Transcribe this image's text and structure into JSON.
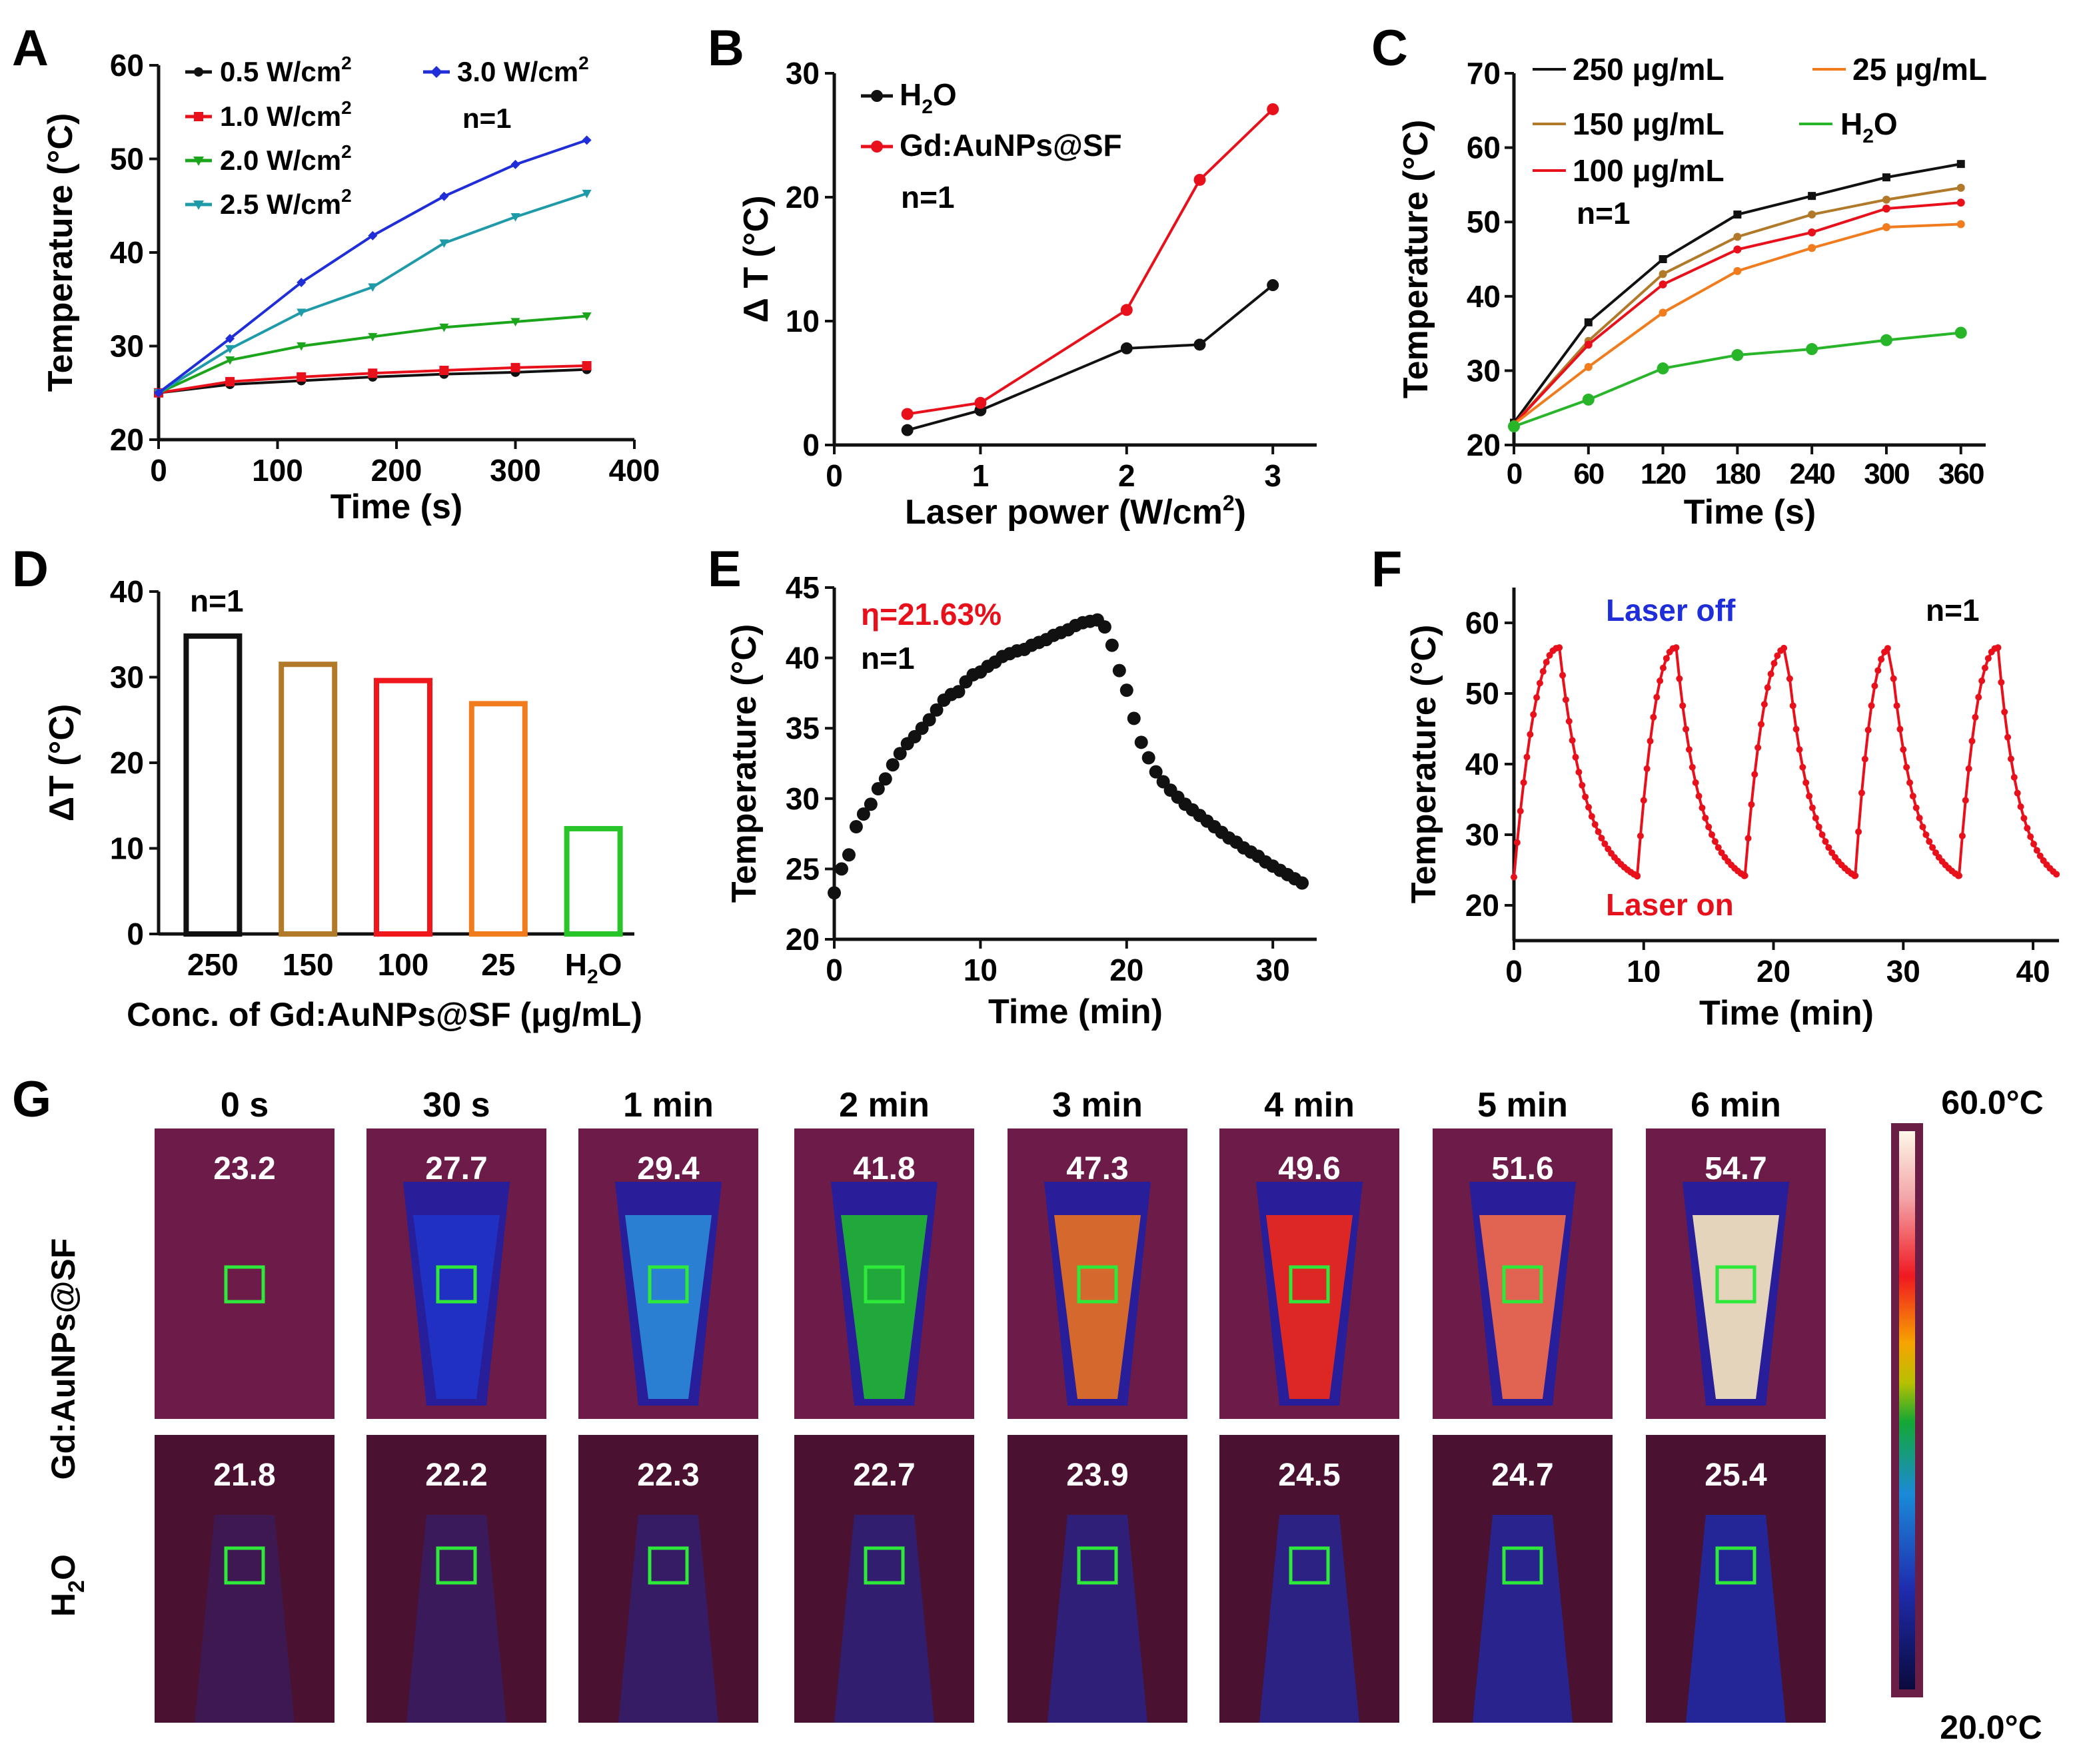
{
  "figure_note": "Photothermal performance of Gd:AuNPs@SF",
  "chart_data": [
    {
      "id": "A",
      "type": "line",
      "panel_label": "A",
      "xlabel": "Time (s)",
      "ylabel": "Temperature (°C)",
      "xlim": [
        0,
        400
      ],
      "ylim": [
        20,
        60
      ],
      "xticks": [
        0,
        100,
        200,
        300,
        400
      ],
      "yticks": [
        20,
        30,
        40,
        50,
        60
      ],
      "annotation": "n=1",
      "x": [
        0,
        60,
        120,
        180,
        240,
        300,
        360
      ],
      "series": [
        {
          "name": "0.5 W/cm",
          "sup": "2",
          "color": "#111111",
          "marker": "circle",
          "values": [
            25.0,
            25.9,
            26.3,
            26.7,
            27.0,
            27.2,
            27.5
          ]
        },
        {
          "name": "1.0 W/cm",
          "sup": "2",
          "color": "#e8111b",
          "marker": "square",
          "values": [
            25.0,
            26.2,
            26.7,
            27.1,
            27.4,
            27.7,
            27.9
          ]
        },
        {
          "name": "2.0 W/cm",
          "sup": "2",
          "color": "#1aa51a",
          "marker": "tri-down",
          "values": [
            25.0,
            28.5,
            30.0,
            31.0,
            32.0,
            32.6,
            33.2
          ]
        },
        {
          "name": "2.5 W/cm",
          "sup": "2",
          "color": "#1f9aa8",
          "marker": "tri-down",
          "values": [
            25.0,
            29.7,
            33.6,
            36.3,
            41.0,
            43.8,
            46.3
          ]
        },
        {
          "name": "3.0 W/cm",
          "sup": "2",
          "color": "#1f2ed8",
          "marker": "diamond",
          "values": [
            25.0,
            30.8,
            36.8,
            41.8,
            46.0,
            49.4,
            52.0
          ]
        }
      ]
    },
    {
      "id": "B",
      "type": "line",
      "panel_label": "B",
      "xlabel": "Laser power (W/cm",
      "xlabel_sup": "2",
      "xlabel_end": ")",
      "ylabel": "Δ T (°C)",
      "xlim": [
        0,
        3.3
      ],
      "ylim": [
        0,
        30
      ],
      "xticks": [
        0,
        1,
        2,
        3
      ],
      "yticks": [
        0,
        10,
        20,
        30
      ],
      "annotation": "n=1",
      "series": [
        {
          "name": "H2O",
          "label_main": "H",
          "label_sub": "2",
          "label_end": "O",
          "color": "#111111",
          "x": [
            0.5,
            1,
            2,
            2.5,
            3
          ],
          "values": [
            1.2,
            2.8,
            7.8,
            8.1,
            12.9
          ]
        },
        {
          "name": "Gd:AuNPs@SF",
          "color": "#e8111b",
          "x": [
            0.5,
            1,
            2,
            2.5,
            3
          ],
          "values": [
            2.5,
            3.4,
            10.9,
            21.4,
            27.1
          ]
        }
      ]
    },
    {
      "id": "C",
      "type": "line",
      "panel_label": "C",
      "xlabel": "Time (s)",
      "ylabel": "Temperature (°C)",
      "xlim": [
        0,
        380
      ],
      "ylim": [
        20,
        70
      ],
      "xticks": [
        0,
        60,
        120,
        180,
        240,
        300,
        360
      ],
      "yticks": [
        20,
        30,
        40,
        50,
        60,
        70
      ],
      "annotation": "n=1",
      "x": [
        0,
        60,
        120,
        180,
        240,
        300,
        360
      ],
      "series": [
        {
          "name": "250 μg/mL",
          "color": "#111111",
          "values": [
            23.0,
            36.5,
            45.0,
            51.0,
            53.5,
            56.0,
            57.8
          ]
        },
        {
          "name": "150 μg/mL",
          "color": "#b07a2a",
          "values": [
            22.8,
            34.0,
            43.0,
            48.0,
            51.0,
            53.0,
            54.6
          ]
        },
        {
          "name": "100 μg/mL",
          "color": "#e8111b",
          "values": [
            22.8,
            33.5,
            41.6,
            46.3,
            48.6,
            51.8,
            52.6
          ]
        },
        {
          "name": "25 μg/mL",
          "color": "#f07c1e",
          "values": [
            22.8,
            30.5,
            37.8,
            43.4,
            46.5,
            49.3,
            49.7
          ]
        },
        {
          "name": "H2O",
          "label_main": "H",
          "label_sub": "2",
          "label_end": "O",
          "color": "#28b52a",
          "values": [
            22.5,
            26.1,
            30.3,
            32.1,
            32.9,
            34.1,
            35.1
          ]
        }
      ]
    },
    {
      "id": "D",
      "type": "bar",
      "panel_label": "D",
      "xlabel": "Conc. of Gd:AuNPs@SF (μg/mL)",
      "ylabel": "ΔT (°C)",
      "ylim": [
        0,
        40
      ],
      "yticks": [
        0,
        10,
        20,
        30,
        40
      ],
      "annotation": "n=1",
      "categories": [
        "250",
        "150",
        "100",
        "25",
        "H2O"
      ],
      "values": [
        34.8,
        31.5,
        29.6,
        26.9,
        12.3
      ],
      "colors": [
        "#111111",
        "#b07a2a",
        "#f0171c",
        "#f07c1e",
        "#28c52a"
      ]
    },
    {
      "id": "E",
      "type": "scatter",
      "panel_label": "E",
      "xlabel": "Time (min)",
      "ylabel": "Temperature (°C)",
      "xlim": [
        0,
        33
      ],
      "ylim": [
        20,
        45
      ],
      "xticks": [
        0,
        10,
        20,
        30
      ],
      "yticks": [
        20,
        25,
        30,
        35,
        40,
        45
      ],
      "annotation_red": "η=21.63%",
      "annotation": "n=1",
      "x": [
        0,
        0.5,
        1.0,
        1.5,
        2.0,
        2.5,
        3.0,
        3.5,
        4.0,
        4.5,
        5.0,
        5.5,
        6.0,
        6.5,
        7.0,
        7.5,
        8.0,
        8.5,
        9.0,
        9.5,
        10.0,
        10.5,
        11.0,
        11.5,
        12.0,
        12.5,
        13.0,
        13.5,
        14.0,
        14.5,
        15.0,
        15.5,
        16.0,
        16.5,
        17.0,
        17.5,
        18.0,
        18.5,
        19.0,
        19.5,
        20.0,
        20.5,
        21.0,
        21.5,
        22.0,
        22.5,
        23.0,
        23.5,
        24.0,
        24.5,
        25.0,
        25.5,
        26.0,
        26.5,
        27.0,
        27.5,
        28.0,
        28.5,
        29.0,
        29.5,
        30.0,
        30.5,
        31.0,
        31.5,
        32.0
      ],
      "values": [
        23.3,
        25.0,
        26.0,
        28.0,
        28.9,
        29.6,
        30.7,
        31.4,
        32.4,
        33.2,
        33.9,
        34.4,
        35.0,
        35.6,
        36.3,
        37.0,
        37.4,
        37.6,
        38.3,
        38.8,
        39.0,
        39.4,
        39.7,
        40.1,
        40.3,
        40.5,
        40.6,
        40.9,
        41.1,
        41.3,
        41.6,
        41.8,
        42.0,
        42.3,
        42.5,
        42.6,
        42.7,
        42.2,
        40.9,
        39.1,
        37.7,
        35.7,
        34.0,
        32.9,
        31.9,
        31.2,
        30.6,
        30.1,
        29.6,
        29.2,
        28.8,
        28.4,
        28.0,
        27.6,
        27.2,
        26.9,
        26.5,
        26.2,
        25.9,
        25.5,
        25.2,
        24.9,
        24.6,
        24.3,
        24.0
      ]
    },
    {
      "id": "F",
      "type": "line",
      "panel_label": "F",
      "xlabel": "Time (min)",
      "ylabel": "Temperature (°C)",
      "xlim": [
        0,
        42
      ],
      "ylim": [
        15,
        65
      ],
      "xticks": [
        0,
        10,
        20,
        30,
        40
      ],
      "yticks": [
        20,
        30,
        40,
        50,
        60
      ],
      "annotation": "n=1",
      "label_off": "Laser off",
      "label_on": "Laser on",
      "cycles": [
        {
          "start": 0.0,
          "peak_time": 3.5,
          "end": 9.5
        },
        {
          "start": 9.5,
          "peak_time": 12.5,
          "end": 17.8
        },
        {
          "start": 17.8,
          "peak_time": 21.0,
          "end": 26.3
        },
        {
          "start": 26.3,
          "peak_time": 29.0,
          "end": 34.3
        },
        {
          "start": 34.3,
          "peak_time": 37.3,
          "end": 42.0
        }
      ],
      "start_temp": 24.0,
      "peak_temp": 56.5,
      "min_temp": 24.2
    },
    {
      "id": "G",
      "type": "thermal-images",
      "panel_label": "G",
      "time_labels": [
        "0 s",
        "30 s",
        "1 min",
        "2 min",
        "3 min",
        "4 min",
        "5 min",
        "6 min"
      ],
      "rows": [
        {
          "label": "Gd:AuNPs@SF",
          "values": [
            "23.2",
            "27.7",
            "29.4",
            "41.8",
            "47.3",
            "49.6",
            "51.6",
            "54.7"
          ]
        },
        {
          "label": "H2O",
          "label_main": "H",
          "label_sub": "2",
          "label_end": "O",
          "values": [
            "21.8",
            "22.2",
            "22.3",
            "22.7",
            "23.9",
            "24.5",
            "24.7",
            "25.4"
          ]
        }
      ],
      "scale_max": "60.0°C",
      "scale_min": "20.0°C",
      "colors": {
        "background": "#6a1d45",
        "cold": "#1b1c8c"
      }
    }
  ]
}
